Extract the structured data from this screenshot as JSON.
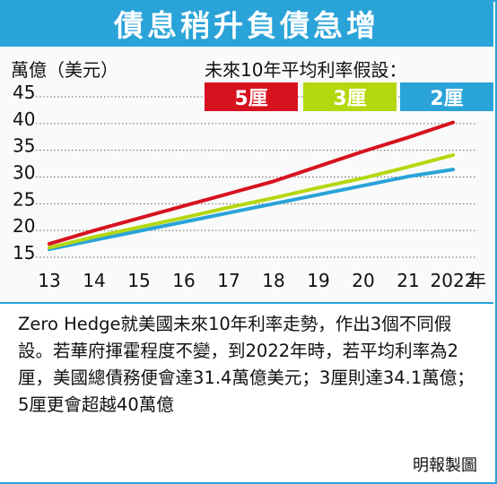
{
  "header": {
    "title": "債息稍升負債急增"
  },
  "chart_data": {
    "type": "line",
    "ylabel": "萬億（美元）",
    "legend_title": "未來10年平均利率假設：",
    "x": [
      "13",
      "14",
      "15",
      "16",
      "17",
      "18",
      "19",
      "20",
      "21",
      "2022"
    ],
    "x_suffix": "年",
    "ylim": [
      15,
      45
    ],
    "yticks": [
      15,
      20,
      25,
      30,
      35,
      40,
      45
    ],
    "grid": "dotted-horizontal",
    "legend_position": "top-right",
    "series": [
      {
        "name": "5厘",
        "color": "#d7121f",
        "values": [
          17.5,
          20.0,
          22.3,
          24.6,
          26.9,
          29.2,
          32.0,
          34.8,
          37.4,
          40.2
        ]
      },
      {
        "name": "3厘",
        "color": "#b4d80e",
        "values": [
          16.8,
          18.8,
          20.6,
          22.4,
          24.3,
          26.1,
          28.0,
          29.8,
          31.9,
          34.1
        ]
      },
      {
        "name": "2厘",
        "color": "#29a3d8",
        "values": [
          16.5,
          18.2,
          19.9,
          21.6,
          23.3,
          25.0,
          26.7,
          28.4,
          30.1,
          31.4
        ]
      }
    ]
  },
  "description": "Zero Hedge就美國未來10年利率走勢，作出3個不同假設。若華府揮霍程度不變，到2022年時，若平均利率為2厘，美國總債務便會達31.4萬億美元；3厘則達34.1萬億；5厘更會超越40萬億",
  "credit": "明報製圖"
}
